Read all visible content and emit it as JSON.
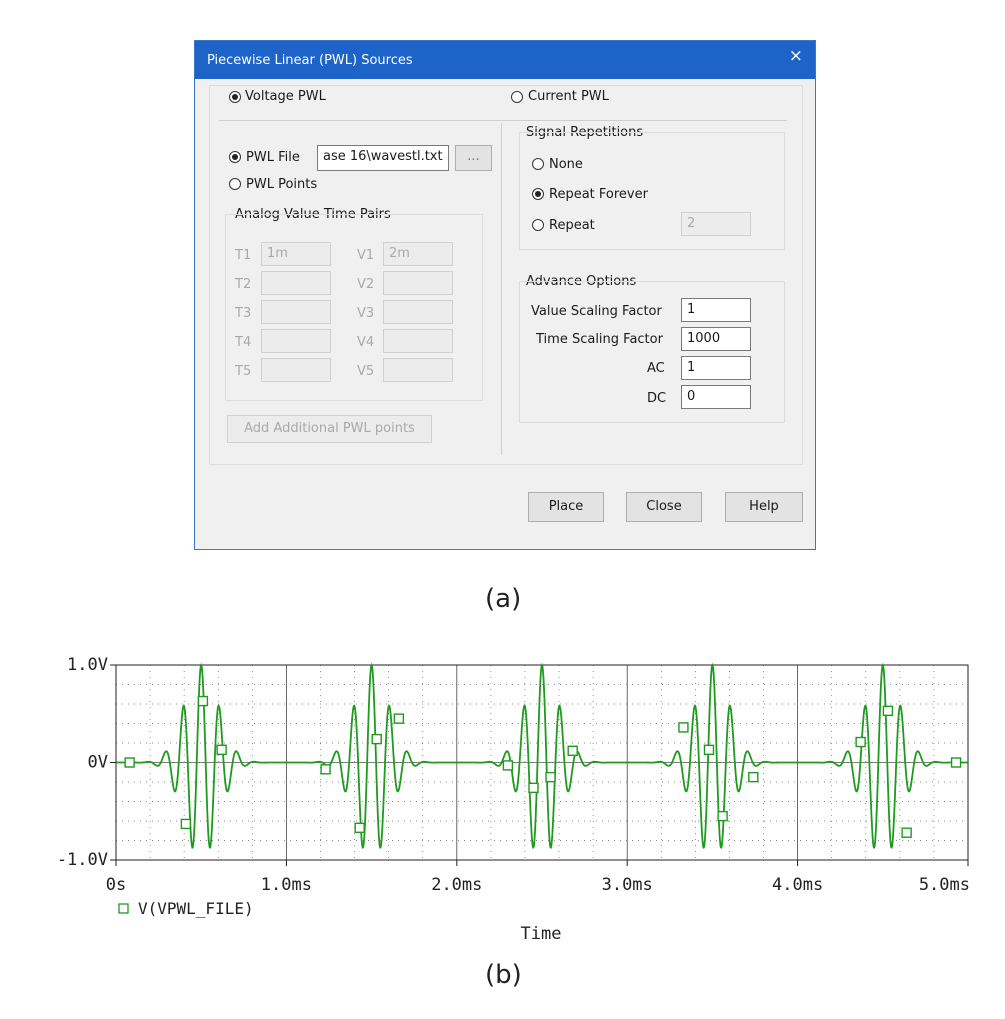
{
  "dialog": {
    "title": "Piecewise Linear (PWL) Sources",
    "close_glyph": "×",
    "voltage_pwl": "Voltage PWL",
    "current_pwl": "Current PWL",
    "pwl_file_label": "PWL File",
    "pwl_file_value": "ase 16\\wavestl.txt",
    "browse_label": "...",
    "pwl_points_label": "PWL Points",
    "pairs_title": "Analog Value Time Pairs",
    "pairs": [
      {
        "t": "T1",
        "t_val": "1m",
        "v": "V1",
        "v_val": "2m"
      },
      {
        "t": "T2",
        "t_val": "",
        "v": "V2",
        "v_val": ""
      },
      {
        "t": "T3",
        "t_val": "",
        "v": "V3",
        "v_val": ""
      },
      {
        "t": "T4",
        "t_val": "",
        "v": "V4",
        "v_val": ""
      },
      {
        "t": "T5",
        "t_val": "",
        "v": "V5",
        "v_val": ""
      }
    ],
    "add_points_label": "Add Additional PWL points",
    "repetitions_title": "Signal Repetitions",
    "rep_none": "None",
    "rep_forever": "Repeat Forever",
    "rep_repeat": "Repeat",
    "rep_count": "2",
    "advance_title": "Advance Options",
    "value_scaling_label": "Value Scaling Factor",
    "value_scaling_value": "1",
    "time_scaling_label": "Time Scaling Factor",
    "time_scaling_value": "1000",
    "ac_label": "AC",
    "ac_value": "1",
    "dc_label": "DC",
    "dc_value": "0",
    "place_label": "Place",
    "close_label": "Close",
    "help_label": "Help"
  },
  "caption_a": "(a)",
  "caption_b": "(b)",
  "chart_data": {
    "type": "line",
    "xlabel": "Time",
    "ylabel": "",
    "xlim": [
      0,
      5.0
    ],
    "ylim": [
      -1.0,
      1.0
    ],
    "x_unit": "ms",
    "x_ticks": [
      "0s",
      "1.0ms",
      "2.0ms",
      "3.0ms",
      "4.0ms",
      "5.0ms"
    ],
    "y_ticks": [
      "1.0V",
      "0V",
      "-1.0V"
    ],
    "grid": true,
    "legend": "bottom-left",
    "color": "#1f9a1f",
    "series": [
      {
        "name": "V(VPWL_FILE)",
        "burst_centers_ms": [
          0.5,
          1.5,
          2.5,
          3.5,
          4.5
        ],
        "peak_amplitude_V": 1.0,
        "marker": "square",
        "markers": [
          [
            0.08,
            0.0
          ],
          [
            0.41,
            -0.63
          ],
          [
            0.51,
            0.63
          ],
          [
            0.62,
            0.13
          ],
          [
            1.23,
            -0.07
          ],
          [
            1.43,
            -0.67
          ],
          [
            1.53,
            0.24
          ],
          [
            1.66,
            0.45
          ],
          [
            2.3,
            -0.03
          ],
          [
            2.45,
            -0.26
          ],
          [
            2.55,
            -0.15
          ],
          [
            2.68,
            0.12
          ],
          [
            3.33,
            0.36
          ],
          [
            3.48,
            0.13
          ],
          [
            3.56,
            -0.55
          ],
          [
            3.74,
            -0.15
          ],
          [
            4.37,
            0.21
          ],
          [
            4.53,
            0.53
          ],
          [
            4.64,
            -0.72
          ],
          [
            4.93,
            0.0
          ]
        ]
      }
    ]
  }
}
